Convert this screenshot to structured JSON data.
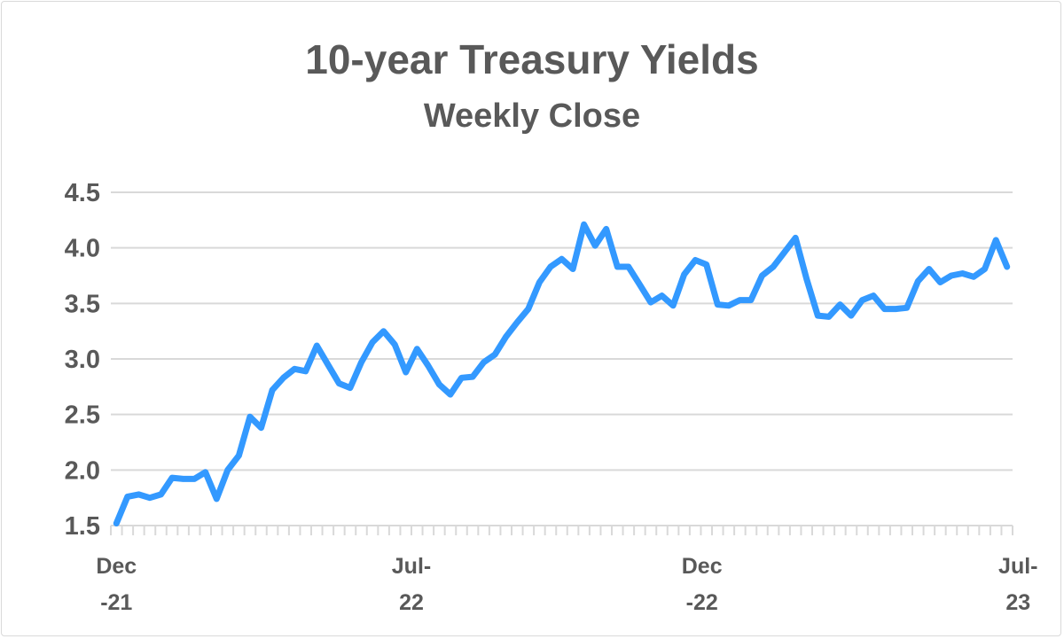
{
  "chart_data": {
    "type": "line",
    "title": "10-year Treasury Yields",
    "subtitle": "Weekly Close",
    "xlabel": "",
    "ylabel": "",
    "ylim": [
      1.5,
      4.5
    ],
    "y_ticks": [
      "1.5",
      "2.0",
      "2.5",
      "3.0",
      "3.5",
      "4.0",
      "4.5"
    ],
    "x_tick_labels": [
      {
        "line1": "Dec",
        "line2": "-21"
      },
      {
        "line1": "Jul-",
        "line2": "22"
      },
      {
        "line1": "Dec",
        "line2": "-22"
      },
      {
        "line1": "Jul-",
        "line2": "23"
      }
    ],
    "grid": true,
    "legend": "none",
    "line_color": "#3399ff",
    "series": [
      {
        "values": [
          1.52,
          1.76,
          1.78,
          1.75,
          1.78,
          1.93,
          1.92,
          1.92,
          1.98,
          1.74,
          2.0,
          2.13,
          2.48,
          2.38,
          2.72,
          2.83,
          2.91,
          2.89,
          3.12,
          2.95,
          2.78,
          2.74,
          2.97,
          3.15,
          3.25,
          3.13,
          2.88,
          3.09,
          2.94,
          2.77,
          2.68,
          2.83,
          2.84,
          2.97,
          3.04,
          3.2,
          3.33,
          3.45,
          3.69,
          3.83,
          3.9,
          3.81,
          4.21,
          4.02,
          4.17,
          3.83,
          3.83,
          3.67,
          3.51,
          3.57,
          3.48,
          3.76,
          3.89,
          3.85,
          3.49,
          3.48,
          3.53,
          3.53,
          3.75,
          3.83,
          3.96,
          4.09,
          3.72,
          3.39,
          3.38,
          3.49,
          3.39,
          3.53,
          3.57,
          3.45,
          3.45,
          3.46,
          3.7,
          3.81,
          3.69,
          3.75,
          3.77,
          3.74,
          3.81,
          4.07,
          3.83
        ]
      }
    ]
  }
}
